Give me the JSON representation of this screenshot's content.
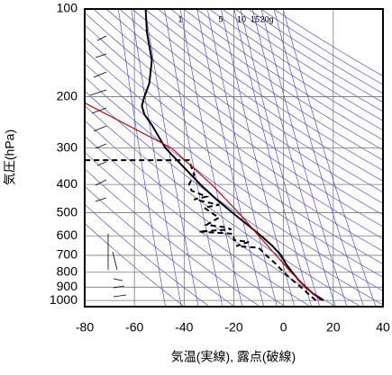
{
  "chart_data": {
    "type": "sounding",
    "xlabel": "気温(実線), 露点(破線)",
    "ylabel": "気圧(hPa)",
    "xlim": [
      -80,
      40
    ],
    "xticks": [
      -80,
      -60,
      -40,
      -20,
      0,
      20,
      40
    ],
    "ylim": [
      1050,
      100
    ],
    "yticks": [
      100,
      200,
      300,
      400,
      500,
      600,
      700,
      800,
      900,
      1000
    ],
    "ylog": true,
    "grid": true,
    "mixing_ratio_labels": [
      "1",
      "5",
      "10",
      "15",
      "20g"
    ],
    "series": [
      {
        "color": "#000000",
        "style": "solid",
        "x": [
          16,
          12,
          9,
          6,
          3.5,
          1,
          -1,
          -4.5,
          -9,
          -14.5,
          -20.5,
          -27,
          -33.5,
          -40,
          -47.5,
          -53,
          -56,
          -57,
          -56,
          -54,
          -53,
          -55,
          -55.5
        ],
        "y": [
          1000,
          950,
          900,
          850,
          800,
          750,
          700,
          650,
          600,
          550,
          500,
          450,
          400,
          350,
          300,
          250,
          230,
          215,
          200,
          180,
          150,
          120,
          100
        ]
      },
      {
        "color": "#000000",
        "style": "dashed",
        "x": [
          13,
          10,
          7,
          3.5,
          0,
          -3,
          -7,
          -10,
          -19,
          -14,
          -20,
          -20,
          -21,
          -34,
          -21,
          -24,
          -31,
          -26,
          -29,
          -32,
          -26,
          -36,
          -31,
          -37,
          -38,
          -36,
          -37,
          -38,
          -80
        ],
        "y": [
          1000,
          950,
          900,
          850,
          800,
          750,
          700,
          660,
          650,
          630,
          620,
          600,
          590,
          580,
          570,
          560,
          550,
          520,
          500,
          480,
          470,
          450,
          440,
          420,
          400,
          370,
          350,
          330,
          330
        ]
      },
      {
        "color": "#cc0000",
        "style": "solid",
        "x": [
          15,
          9,
          3,
          -3,
          -10,
          -18,
          -29,
          -45,
          -80
        ],
        "y": [
          1000,
          900,
          800,
          700,
          600,
          500,
          400,
          300,
          210
        ]
      }
    ]
  }
}
